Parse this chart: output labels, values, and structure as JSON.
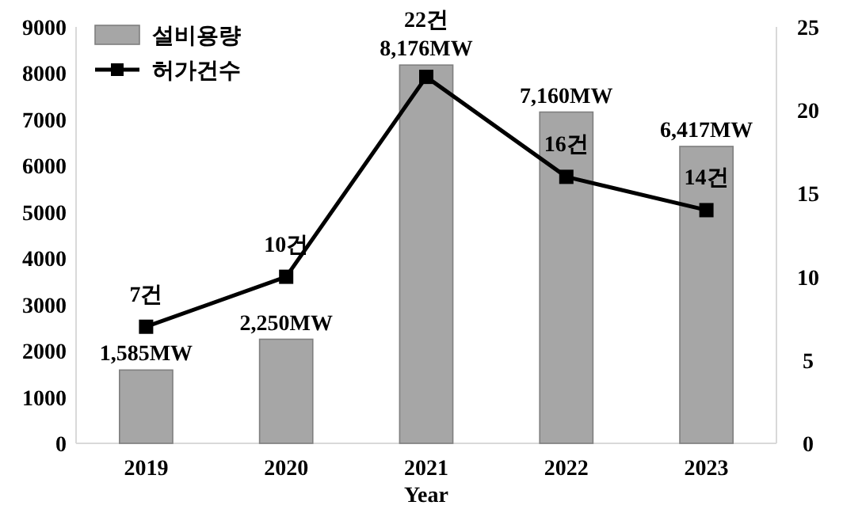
{
  "chart_data": {
    "type": "bar",
    "xlabel": "Year",
    "categories": [
      "2019",
      "2020",
      "2021",
      "2022",
      "2023"
    ],
    "series": [
      {
        "name": "설비용량",
        "color": "#a6a6a6",
        "values": [
          1585,
          2250,
          8176,
          7160,
          6417
        ],
        "value_labels": [
          "1,585MW",
          "2,250MW",
          "8,176MW",
          "7,160MW",
          "6,417MW"
        ]
      },
      {
        "name": "허가건수",
        "type": "line",
        "axis": "y2",
        "color": "#000000",
        "values": [
          7,
          10,
          22,
          16,
          14
        ],
        "value_labels": [
          "7건",
          "10건",
          "22건",
          "16건",
          "14건"
        ]
      }
    ],
    "ylim": [
      0,
      9000
    ],
    "yticks": [
      0,
      1000,
      2000,
      3000,
      4000,
      5000,
      6000,
      7000,
      8000,
      9000
    ],
    "y2lim": [
      0,
      25
    ],
    "y2ticks": [
      0,
      5,
      10,
      15,
      20,
      25
    ],
    "legend": "top left",
    "marker": "square",
    "line_style": "solid"
  }
}
